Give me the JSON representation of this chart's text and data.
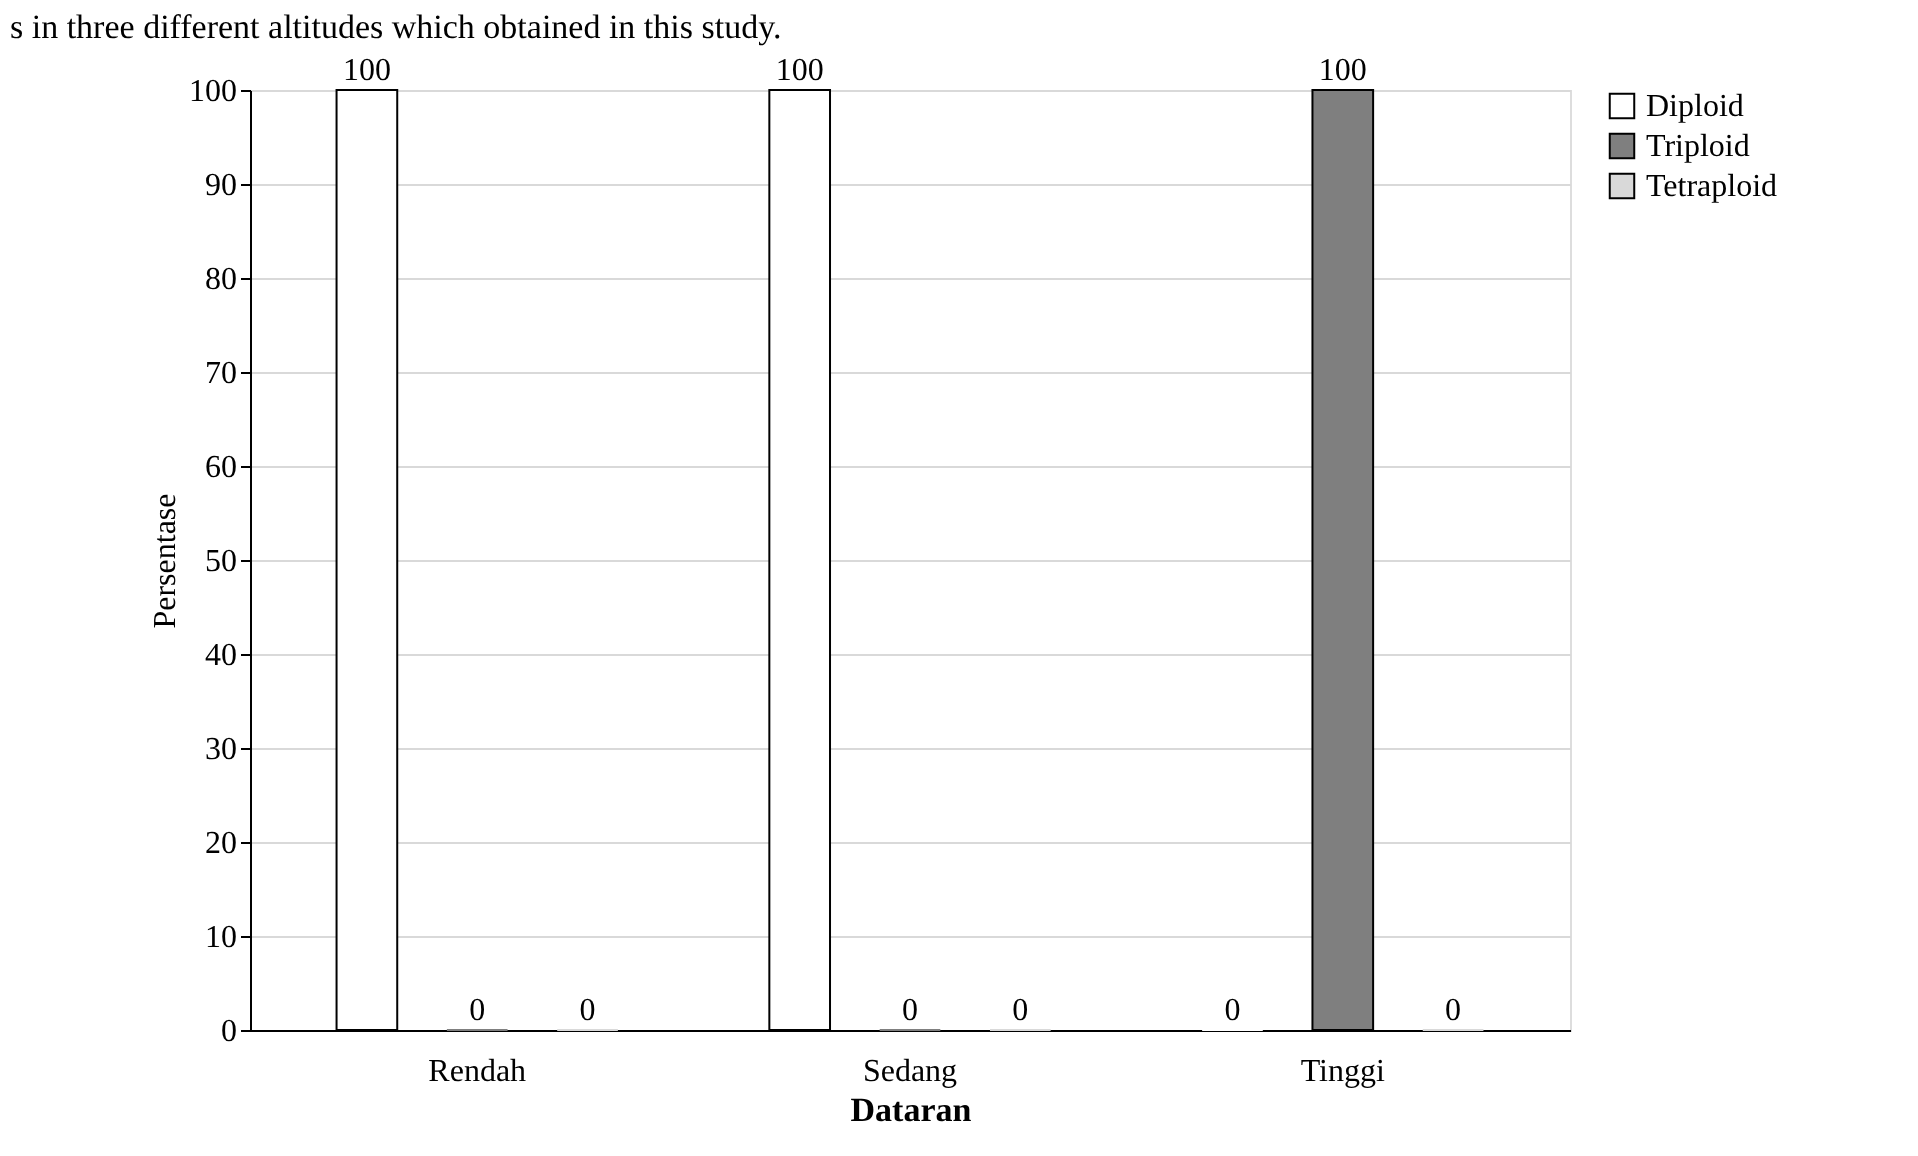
{
  "chart_data": {
    "type": "bar",
    "categories": [
      "Rendah",
      "Sedang",
      "Tinggi"
    ],
    "series": [
      {
        "name": "Diploid",
        "color": "#ffffff",
        "values": [
          100,
          100,
          0
        ]
      },
      {
        "name": "Triploid",
        "color": "#7f7f7f",
        "values": [
          0,
          0,
          100
        ]
      },
      {
        "name": "Tetraploid",
        "color": "#d9d9d9",
        "values": [
          0,
          0,
          0
        ]
      }
    ],
    "xlabel": "Dataran",
    "ylabel": "Persentase",
    "ylim": [
      0,
      100
    ],
    "yticks": [
      0,
      10,
      20,
      30,
      40,
      50,
      60,
      70,
      80,
      90,
      100
    ],
    "grid": "y",
    "legend": "right",
    "data_labels": true,
    "annotations": [
      "s in three different altitudes which obtained in this study."
    ]
  }
}
